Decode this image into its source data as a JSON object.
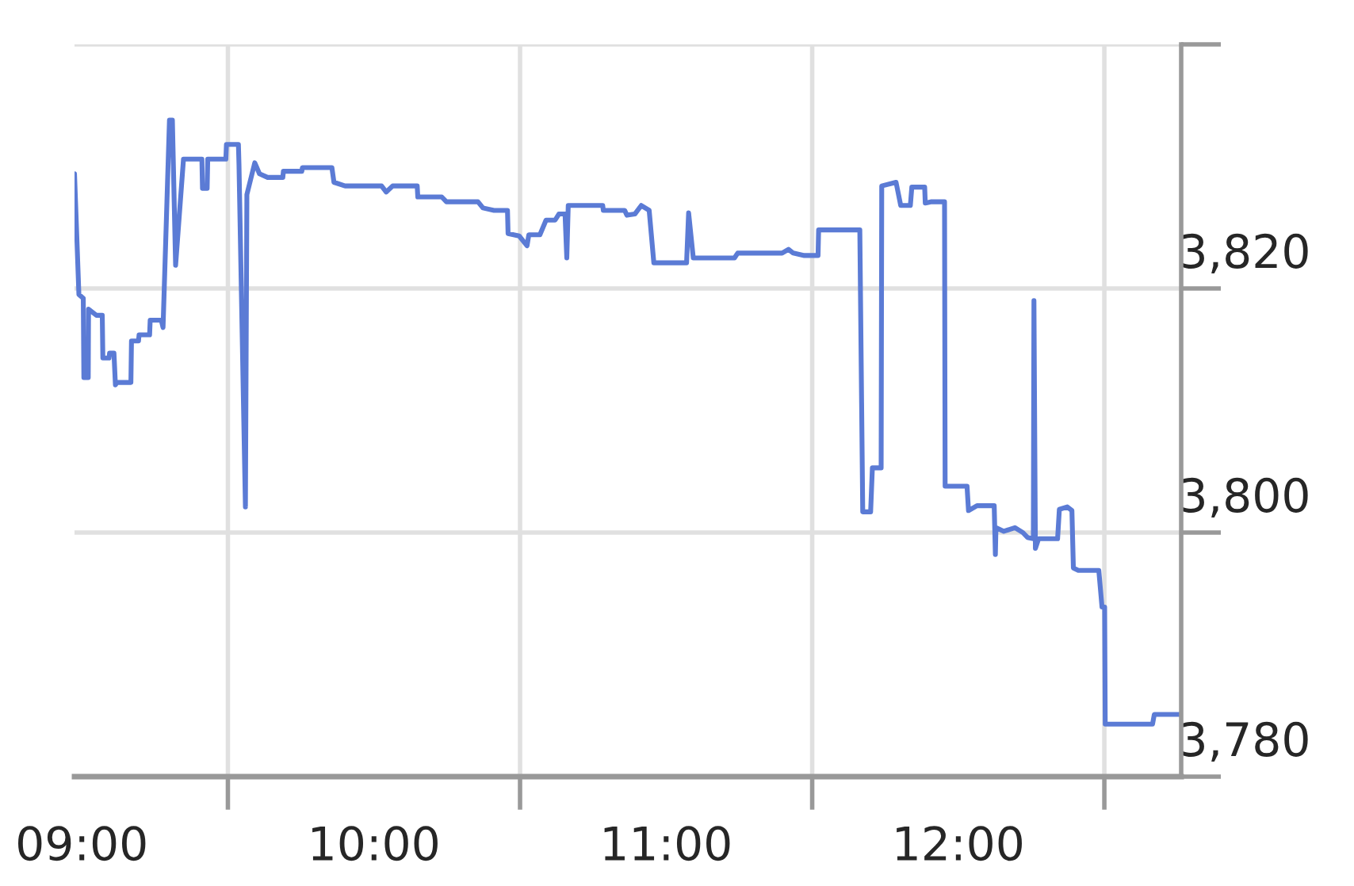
{
  "chart_data": {
    "type": "line",
    "x": [
      8.975,
      8.99,
      9.005,
      9.007,
      9.022,
      9.023,
      9.05,
      9.07,
      9.072,
      9.093,
      9.095,
      9.11,
      9.115,
      9.12,
      9.168,
      9.17,
      9.194,
      9.196,
      9.232,
      9.234,
      9.272,
      9.278,
      9.3,
      9.31,
      9.321,
      9.348,
      9.411,
      9.413,
      9.429,
      9.431,
      9.493,
      9.495,
      9.536,
      9.538,
      9.56,
      9.565,
      9.592,
      9.608,
      9.636,
      9.688,
      9.69,
      9.753,
      9.755,
      9.856,
      9.863,
      9.901,
      10.026,
      10.042,
      10.064,
      10.148,
      10.15,
      10.232,
      10.248,
      10.356,
      10.373,
      10.411,
      10.457,
      10.459,
      10.497,
      10.524,
      10.53,
      10.568,
      10.589,
      10.62,
      10.633,
      10.654,
      10.66,
      10.665,
      10.783,
      10.785,
      10.858,
      10.866,
      10.893,
      10.915,
      10.942,
      10.958,
      11.07,
      11.077,
      11.093,
      11.234,
      11.245,
      11.397,
      11.419,
      11.435,
      11.473,
      11.52,
      11.522,
      11.663,
      11.673,
      11.7,
      11.706,
      11.736,
      11.738,
      11.787,
      11.803,
      11.836,
      11.841,
      11.885,
      11.887,
      11.906,
      11.953,
      11.955,
      12.03,
      12.035,
      12.064,
      12.123,
      12.127,
      12.129,
      12.156,
      12.194,
      12.221,
      12.237,
      12.257,
      12.259,
      12.264,
      12.275,
      12.34,
      12.346,
      12.373,
      12.389,
      12.394,
      12.411,
      12.481,
      12.492,
      12.501,
      12.503,
      12.665,
      12.671,
      12.763
    ],
    "series": [
      {
        "color": "#5b7bd5",
        "values": [
          3829.4,
          3819.5,
          3819.2,
          3812.7,
          3812.7,
          3818.3,
          3817.8,
          3817.8,
          3814.3,
          3814.3,
          3814.7,
          3814.7,
          3812.1,
          3812.3,
          3812.3,
          3815.7,
          3815.7,
          3816.2,
          3816.2,
          3817.4,
          3817.4,
          3816.8,
          3833.8,
          3833.8,
          3821.9,
          3830.6,
          3830.6,
          3828.2,
          3828.2,
          3830.6,
          3830.6,
          3831.8,
          3831.8,
          3830.1,
          3802.1,
          3827.7,
          3830.3,
          3829.4,
          3829.1,
          3829.1,
          3829.6,
          3829.6,
          3829.9,
          3829.9,
          3828.7,
          3828.4,
          3828.4,
          3827.9,
          3828.4,
          3828.4,
          3827.5,
          3827.5,
          3827.1,
          3827.1,
          3826.6,
          3826.4,
          3826.4,
          3824.5,
          3824.3,
          3823.5,
          3824.4,
          3824.4,
          3825.6,
          3825.6,
          3826.1,
          3826.1,
          3822.5,
          3826.8,
          3826.8,
          3826.4,
          3826.4,
          3826.0,
          3826.1,
          3826.8,
          3826.4,
          3822.1,
          3822.1,
          3826.2,
          3822.5,
          3822.5,
          3822.9,
          3822.9,
          3823.2,
          3822.9,
          3822.7,
          3822.7,
          3824.8,
          3824.8,
          3801.7,
          3801.7,
          3805.3,
          3805.3,
          3828.4,
          3828.7,
          3826.8,
          3826.8,
          3828.3,
          3828.3,
          3827.0,
          3827.1,
          3827.1,
          3803.8,
          3803.8,
          3801.8,
          3802.2,
          3802.2,
          3798.2,
          3800.4,
          3800.1,
          3800.4,
          3800.0,
          3799.6,
          3799.5,
          3819.0,
          3798.7,
          3799.5,
          3799.5,
          3801.9,
          3802.1,
          3801.8,
          3797.1,
          3796.9,
          3796.9,
          3793.9,
          3793.9,
          3784.3,
          3784.3,
          3785.1,
          3785.1
        ]
      }
    ],
    "xlim": [
      8.975,
      12.763
    ],
    "xticks": [
      {
        "value": 9,
        "label": "09:00"
      },
      {
        "value": 9.5,
        "label": null
      },
      {
        "value": 10,
        "label": "10:00"
      },
      {
        "value": 10.5,
        "label": null
      },
      {
        "value": 11,
        "label": "11:00"
      },
      {
        "value": 11.5,
        "label": null
      },
      {
        "value": 12,
        "label": "12:00"
      },
      {
        "value": 12.5,
        "label": null
      }
    ],
    "ylim": [
      3780,
      3840
    ],
    "yticks": [
      {
        "value": 3780,
        "label": "3,780"
      },
      {
        "value": 3800,
        "label": "3,800"
      },
      {
        "value": 3820,
        "label": "3,820"
      },
      {
        "value": 3840,
        "label": null
      }
    ],
    "grid": true,
    "marker": "none",
    "line_style": "solid"
  }
}
